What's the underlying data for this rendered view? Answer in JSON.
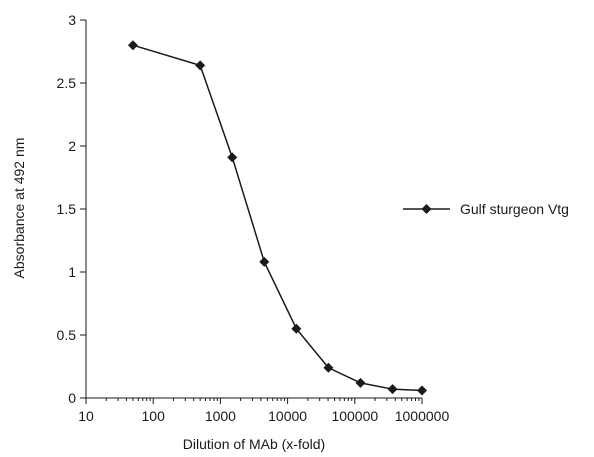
{
  "chart_data": {
    "type": "line",
    "xscale": "log",
    "xlabel": "Dilution of MAb (x-fold)",
    "ylabel": "Absorbance at  492 nm",
    "xlim": [
      10,
      1000000
    ],
    "ylim": [
      0,
      3
    ],
    "x_ticks": [
      "10",
      "100",
      "1000",
      "10000",
      "100000",
      "1000000"
    ],
    "y_ticks": [
      "0",
      "0.5",
      "1",
      "1.5",
      "2",
      "2.5",
      "3"
    ],
    "grid": false,
    "legend_position": "right",
    "series": [
      {
        "name": "Gulf sturgeon Vtg",
        "color": "#1a1a1a",
        "marker": "diamond",
        "x": [
          50,
          500,
          1500,
          4500,
          13500,
          40500,
          121500,
          364500,
          1000000
        ],
        "y": [
          2.8,
          2.64,
          1.91,
          1.08,
          0.55,
          0.24,
          0.12,
          0.07,
          0.06
        ]
      }
    ]
  }
}
